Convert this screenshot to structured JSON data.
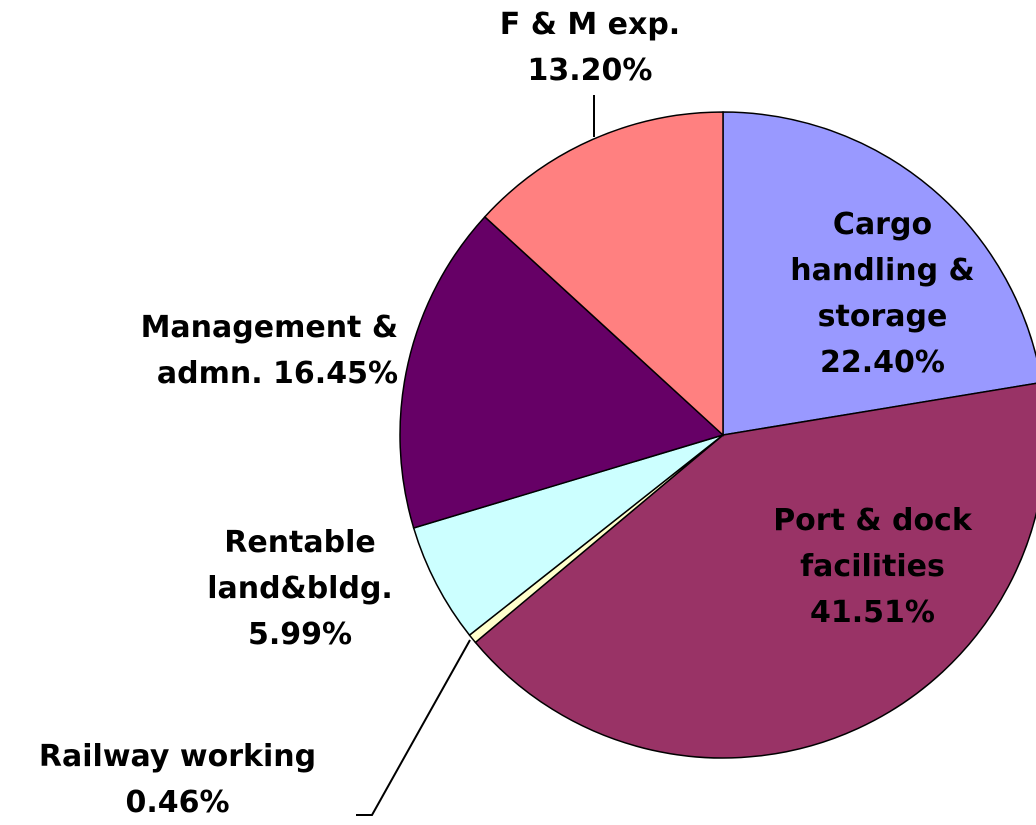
{
  "chart_data": {
    "type": "pie",
    "categories": [
      "Cargo handling & storage",
      "Port & dock facilities",
      "Railway working",
      "Rentable land&bldg.",
      "Management & admn.",
      "F & M exp."
    ],
    "values": [
      22.4,
      41.51,
      0.46,
      5.99,
      16.45,
      13.2
    ],
    "value_labels": [
      "22.40%",
      "41.51%",
      "0.46%",
      "5.99%",
      "16.45%",
      "13.20%"
    ],
    "colors": [
      "#9999ff",
      "#993366",
      "#ffffcc",
      "#ccffff",
      "#660066",
      "#ff8080"
    ]
  }
}
